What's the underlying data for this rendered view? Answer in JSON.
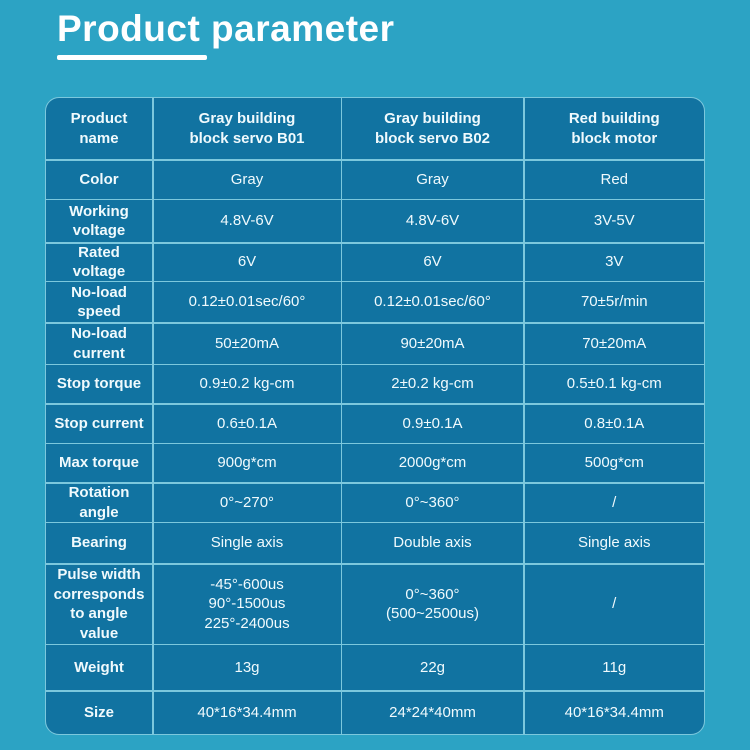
{
  "colors": {
    "page-bg": "#2CA3C4",
    "cell-bg": "#1173A1",
    "border": "#7CC8DD",
    "text": "#F0FAFD",
    "title": "#FFFFFF"
  },
  "page": {
    "title": "Product parameter"
  },
  "table": {
    "header": [
      "Product\nname",
      "Gray building\nblock servo B01",
      "Gray building\nblock servo B02",
      "Red building\nblock motor"
    ],
    "rows": [
      {
        "label": "Color",
        "values": [
          "Gray",
          "Gray",
          "Red"
        ]
      },
      {
        "label": "Working\nvoltage",
        "values": [
          "4.8V-6V",
          "4.8V-6V",
          "3V-5V"
        ]
      },
      {
        "label": "Rated voltage",
        "values": [
          "6V",
          "6V",
          "3V"
        ]
      },
      {
        "label": "No-load\nspeed",
        "values": [
          "0.12±0.01sec/60°",
          "0.12±0.01sec/60°",
          "70±5r/min"
        ]
      },
      {
        "label": "No-load\ncurrent",
        "values": [
          "50±20mA",
          "90±20mA",
          "70±20mA"
        ]
      },
      {
        "label": "Stop torque",
        "values": [
          "0.9±0.2 kg-cm",
          "2±0.2 kg-cm",
          "0.5±0.1 kg-cm"
        ]
      },
      {
        "label": "Stop current",
        "values": [
          "0.6±0.1A",
          "0.9±0.1A",
          "0.8±0.1A"
        ]
      },
      {
        "label": "Max torque",
        "values": [
          "900g*cm",
          "2000g*cm",
          "500g*cm"
        ]
      },
      {
        "label": "Rotation angle",
        "values": [
          "0°~270°",
          "0°~360°",
          "/"
        ]
      },
      {
        "label": "Bearing",
        "values": [
          "Single axis",
          "Double axis",
          "Single axis"
        ]
      },
      {
        "label": "Pulse width\ncorresponds\nto angle value",
        "values": [
          "-45°-600us\n90°-1500us\n225°-2400us",
          "0°~360°\n(500~2500us)",
          "/"
        ]
      },
      {
        "label": "Weight",
        "values": [
          "13g",
          "22g",
          "11g"
        ]
      },
      {
        "label": "Size",
        "values": [
          "40*16*34.4mm",
          "24*24*40mm",
          "40*16*34.4mm"
        ]
      }
    ]
  }
}
